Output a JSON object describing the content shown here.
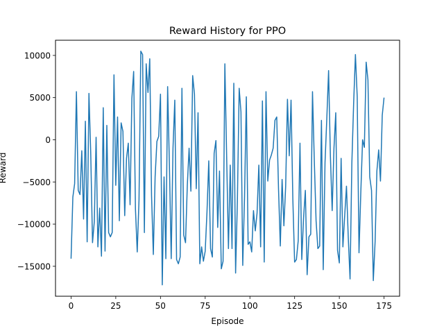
{
  "chart_data": {
    "type": "line",
    "title": "Reward History for PPO",
    "xlabel": "Episode",
    "ylabel": "Reward",
    "xlim": [
      -8.7,
      183.7
    ],
    "ylim": [
      -18550,
      11800
    ],
    "xticks": [
      0,
      25,
      50,
      75,
      100,
      125,
      150,
      175
    ],
    "yticks": [
      -15000,
      -10000,
      -5000,
      0,
      5000,
      10000
    ],
    "grid": false,
    "line_color": "#1f77b4",
    "series": [
      {
        "values": [
          -14100,
          -6800,
          -5200,
          5700,
          -6000,
          -6500,
          -1300,
          -9400,
          2200,
          -12100,
          5500,
          -1600,
          -12200,
          -9700,
          300,
          -12700,
          -8100,
          -13800,
          3800,
          -13200,
          1700,
          -11000,
          -11500,
          -11000,
          7700,
          -5400,
          2700,
          -9600,
          2000,
          1000,
          -9000,
          -2200,
          -400,
          -7700,
          4900,
          8100,
          -8200,
          -13300,
          -7100,
          10500,
          10100,
          -11000,
          9000,
          5600,
          9600,
          -6600,
          -13600,
          -4400,
          -200,
          400,
          5400,
          -17200,
          -4400,
          -14100,
          6300,
          -3100,
          -14100,
          -1000,
          4700,
          -14200,
          -14700,
          -13900,
          6100,
          -11300,
          -12200,
          -5400,
          -1000,
          -6100,
          7600,
          5400,
          -5800,
          3200,
          -14700,
          -12700,
          -14400,
          -13200,
          -8600,
          -2500,
          -12900,
          -13900,
          -1600,
          -100,
          -10400,
          -3700,
          -15300,
          -14400,
          9000,
          -2000,
          -12900,
          -3000,
          -12900,
          6700,
          -15800,
          -7300,
          6100,
          3300,
          -14900,
          -6800,
          5100,
          -12400,
          -12100,
          -13300,
          -8400,
          -10800,
          -8700,
          -3000,
          -12700,
          4600,
          -14500,
          5700,
          -4900,
          -2400,
          -1800,
          -1000,
          2300,
          2700,
          -5800,
          -12600,
          -4700,
          -10200,
          -5500,
          4800,
          -1900,
          4700,
          -7000,
          -14500,
          -14200,
          -12000,
          -400,
          -14200,
          -9300,
          -6000,
          -16000,
          -11500,
          -11200,
          5700,
          -2400,
          -9600,
          -12900,
          -12600,
          2300,
          -15400,
          -2700,
          2500,
          8200,
          -1900,
          -8400,
          -1000,
          3200,
          -13100,
          -14600,
          -2200,
          -12700,
          -9000,
          -5500,
          -11600,
          -16500,
          -2800,
          4300,
          10100,
          5100,
          -13400,
          -6300,
          0,
          -900,
          9200,
          7100,
          -4400,
          -6000,
          -16700,
          -12100,
          -3700,
          -1200,
          -4900,
          2900,
          5000
        ]
      }
    ]
  }
}
